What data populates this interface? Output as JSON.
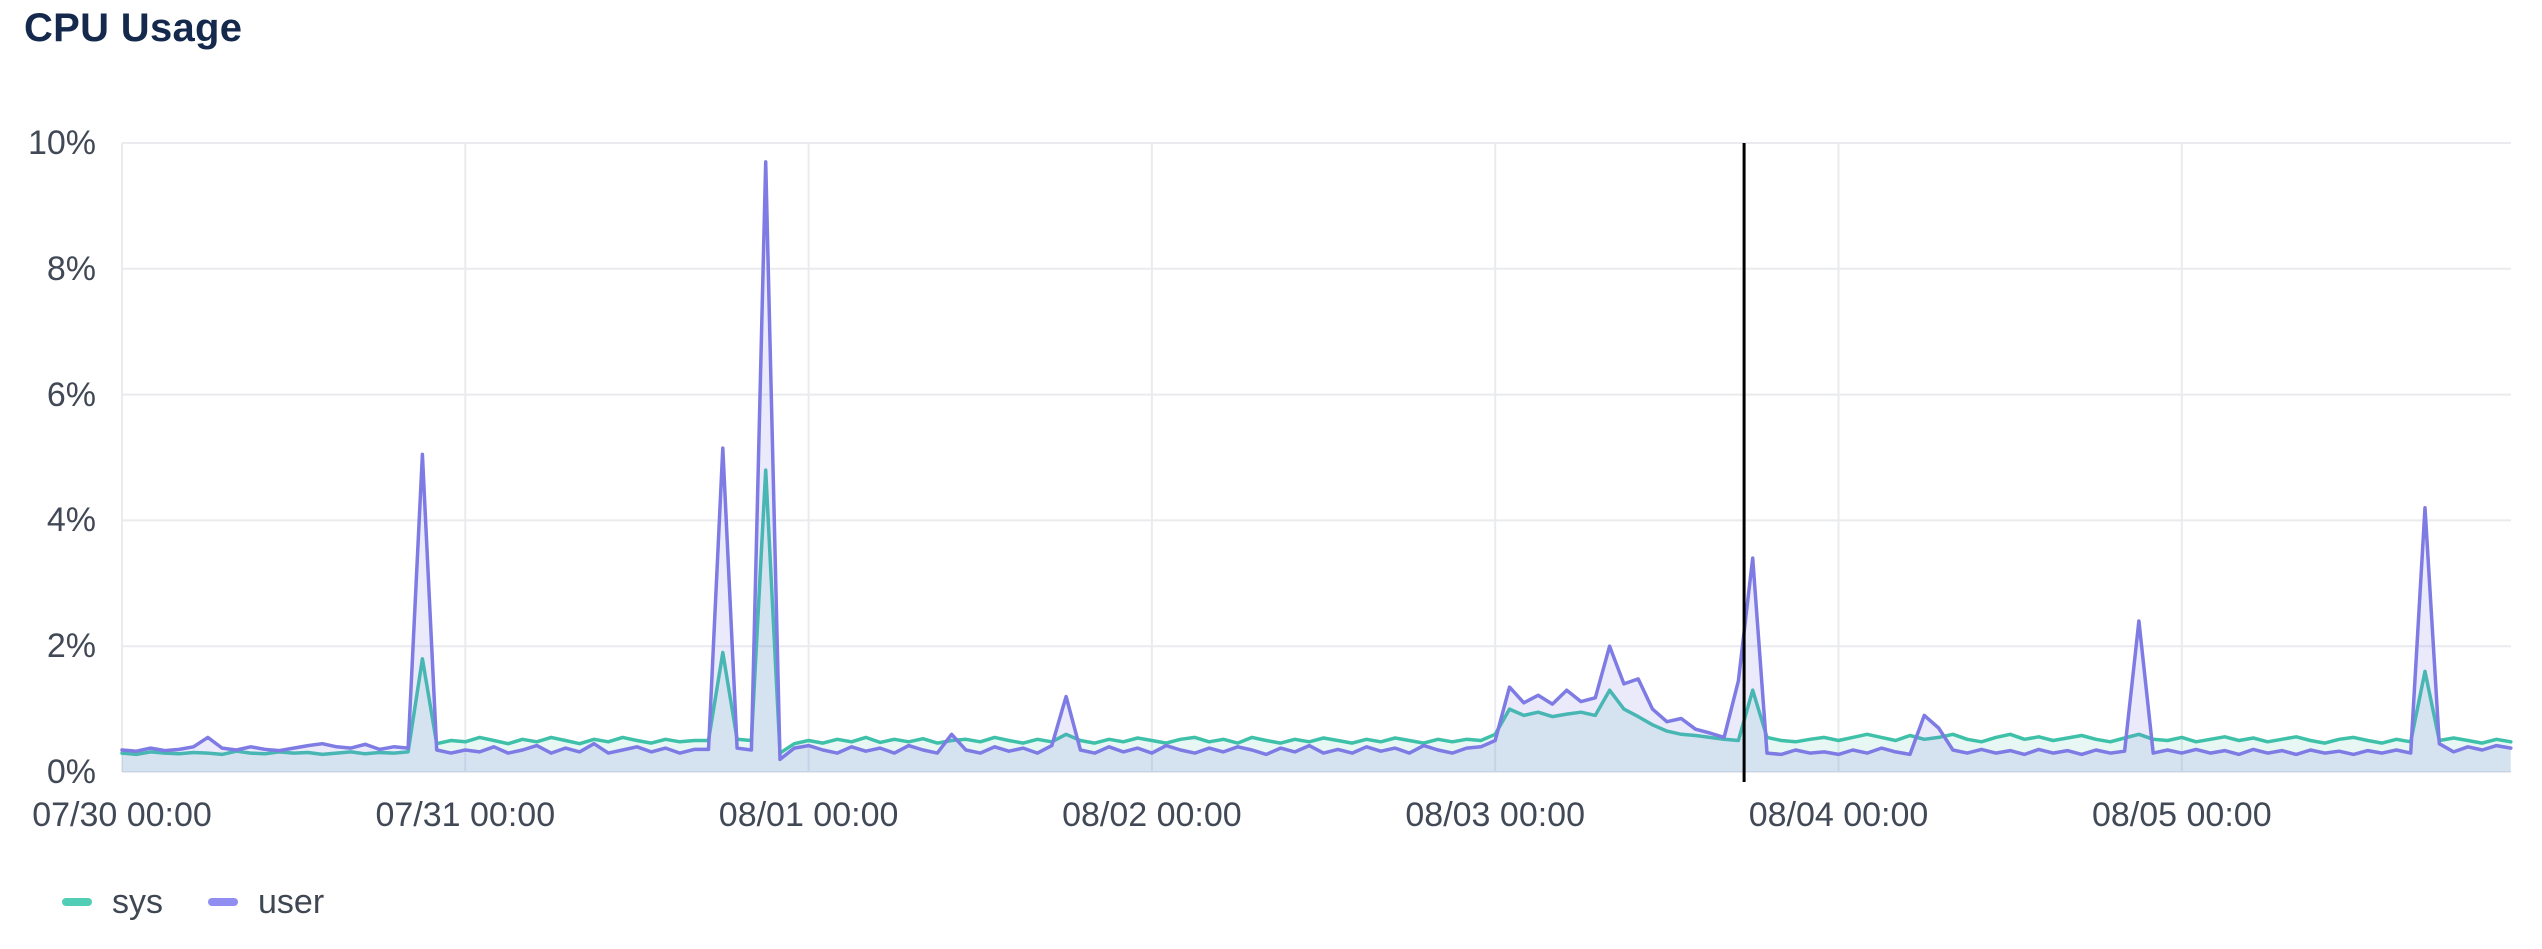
{
  "title": "CPU Usage",
  "legend": [
    {
      "label": "sys",
      "color": "#52cdb6"
    },
    {
      "label": "user",
      "color": "#918ef2"
    }
  ],
  "colors": {
    "title": "#15294d",
    "axis_text": "#414956",
    "gridline": "#e9ebee",
    "annotation": "#000000"
  },
  "chart_data": {
    "type": "area",
    "title": "CPU Usage",
    "xlabel": "",
    "ylabel": "",
    "y_unit": "%",
    "ylim": [
      0,
      10
    ],
    "x_unit": "hours since 07/30 00:00",
    "x_start_hour": 0,
    "x_step_hours": 1,
    "x_end_hour": 167,
    "grid": true,
    "legend_position": "bottom-left",
    "annotation": {
      "type": "vline",
      "hour": 113.4,
      "color": "#000000"
    },
    "y_ticks": [
      {
        "value": 0,
        "label": "0%"
      },
      {
        "value": 2,
        "label": "2%"
      },
      {
        "value": 4,
        "label": "4%"
      },
      {
        "value": 6,
        "label": "6%"
      },
      {
        "value": 8,
        "label": "8%"
      },
      {
        "value": 10,
        "label": "10%"
      }
    ],
    "x_ticks": [
      {
        "hour": 0,
        "label": "07/30 00:00"
      },
      {
        "hour": 24,
        "label": "07/31 00:00"
      },
      {
        "hour": 48,
        "label": "08/01 00:00"
      },
      {
        "hour": 72,
        "label": "08/02 00:00"
      },
      {
        "hour": 96,
        "label": "08/03 00:00"
      },
      {
        "hour": 120,
        "label": "08/04 00:00"
      },
      {
        "hour": 144,
        "label": "08/05 00:00"
      }
    ],
    "series": [
      {
        "name": "sys",
        "color": "#3fc1a9",
        "fill": "rgba(63,193,169,0.13)",
        "values": [
          0.3,
          0.28,
          0.32,
          0.3,
          0.29,
          0.31,
          0.3,
          0.28,
          0.33,
          0.3,
          0.29,
          0.32,
          0.3,
          0.31,
          0.28,
          0.3,
          0.32,
          0.29,
          0.31,
          0.3,
          0.32,
          1.8,
          0.45,
          0.5,
          0.48,
          0.55,
          0.5,
          0.45,
          0.52,
          0.48,
          0.55,
          0.5,
          0.45,
          0.52,
          0.48,
          0.55,
          0.5,
          0.46,
          0.52,
          0.48,
          0.5,
          0.5,
          1.9,
          0.52,
          0.5,
          4.8,
          0.3,
          0.45,
          0.5,
          0.46,
          0.52,
          0.48,
          0.55,
          0.47,
          0.52,
          0.48,
          0.53,
          0.46,
          0.5,
          0.52,
          0.48,
          0.55,
          0.5,
          0.46,
          0.52,
          0.48,
          0.6,
          0.5,
          0.46,
          0.52,
          0.48,
          0.54,
          0.5,
          0.46,
          0.52,
          0.55,
          0.48,
          0.52,
          0.46,
          0.55,
          0.5,
          0.46,
          0.52,
          0.48,
          0.54,
          0.5,
          0.46,
          0.52,
          0.48,
          0.54,
          0.5,
          0.46,
          0.52,
          0.48,
          0.52,
          0.5,
          0.6,
          1.0,
          0.9,
          0.95,
          0.88,
          0.92,
          0.95,
          0.9,
          1.3,
          1.0,
          0.88,
          0.75,
          0.65,
          0.6,
          0.58,
          0.55,
          0.52,
          0.5,
          1.3,
          0.55,
          0.5,
          0.48,
          0.52,
          0.55,
          0.5,
          0.55,
          0.6,
          0.55,
          0.5,
          0.58,
          0.52,
          0.55,
          0.6,
          0.52,
          0.48,
          0.55,
          0.6,
          0.52,
          0.56,
          0.5,
          0.54,
          0.58,
          0.52,
          0.48,
          0.54,
          0.6,
          0.52,
          0.5,
          0.55,
          0.48,
          0.52,
          0.56,
          0.5,
          0.54,
          0.48,
          0.52,
          0.56,
          0.5,
          0.46,
          0.52,
          0.55,
          0.5,
          0.46,
          0.52,
          0.48,
          1.6,
          0.5,
          0.54,
          0.5,
          0.46,
          0.52,
          0.48
        ]
      },
      {
        "name": "user",
        "color": "#7e7be4",
        "fill": "rgba(126,123,228,0.16)",
        "values": [
          0.35,
          0.33,
          0.38,
          0.34,
          0.36,
          0.4,
          0.55,
          0.38,
          0.35,
          0.4,
          0.36,
          0.34,
          0.38,
          0.42,
          0.45,
          0.4,
          0.38,
          0.44,
          0.36,
          0.4,
          0.38,
          5.05,
          0.35,
          0.3,
          0.35,
          0.32,
          0.4,
          0.3,
          0.35,
          0.42,
          0.3,
          0.38,
          0.32,
          0.45,
          0.3,
          0.35,
          0.4,
          0.32,
          0.38,
          0.3,
          0.36,
          0.36,
          5.15,
          0.38,
          0.35,
          9.7,
          0.2,
          0.38,
          0.42,
          0.35,
          0.3,
          0.4,
          0.33,
          0.38,
          0.3,
          0.42,
          0.35,
          0.3,
          0.6,
          0.35,
          0.3,
          0.4,
          0.33,
          0.38,
          0.3,
          0.42,
          1.2,
          0.35,
          0.3,
          0.4,
          0.32,
          0.38,
          0.3,
          0.42,
          0.35,
          0.3,
          0.38,
          0.32,
          0.4,
          0.35,
          0.28,
          0.38,
          0.32,
          0.42,
          0.3,
          0.36,
          0.3,
          0.4,
          0.33,
          0.38,
          0.3,
          0.42,
          0.35,
          0.3,
          0.38,
          0.4,
          0.5,
          1.35,
          1.1,
          1.22,
          1.08,
          1.3,
          1.12,
          1.18,
          2.0,
          1.4,
          1.48,
          1.0,
          0.8,
          0.85,
          0.68,
          0.62,
          0.55,
          1.45,
          3.4,
          0.3,
          0.28,
          0.35,
          0.3,
          0.32,
          0.28,
          0.35,
          0.3,
          0.38,
          0.32,
          0.28,
          0.9,
          0.7,
          0.35,
          0.3,
          0.36,
          0.3,
          0.34,
          0.28,
          0.36,
          0.3,
          0.34,
          0.28,
          0.35,
          0.3,
          0.33,
          2.4,
          0.3,
          0.35,
          0.3,
          0.36,
          0.3,
          0.34,
          0.28,
          0.36,
          0.3,
          0.34,
          0.28,
          0.35,
          0.3,
          0.33,
          0.28,
          0.34,
          0.3,
          0.35,
          0.3,
          4.2,
          0.45,
          0.32,
          0.4,
          0.35,
          0.42,
          0.38
        ]
      }
    ]
  }
}
